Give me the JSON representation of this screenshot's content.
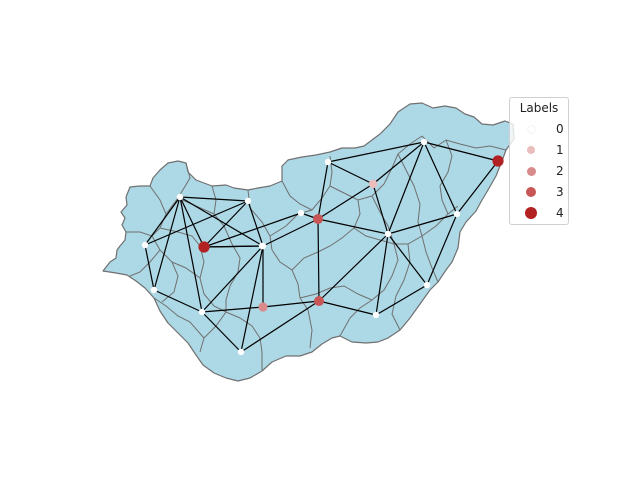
{
  "map": {
    "region_fill": "#add8e6",
    "border_color": "#707070",
    "edge_color": "#000000",
    "nodes": [
      {
        "id": "n1",
        "label": 0
      },
      {
        "id": "n2",
        "label": 0
      },
      {
        "id": "n3",
        "label": 0
      },
      {
        "id": "n4",
        "label": 0
      },
      {
        "id": "n5",
        "label": 4
      },
      {
        "id": "n6",
        "label": 0
      },
      {
        "id": "n7",
        "label": 0
      },
      {
        "id": "n8",
        "label": 0
      },
      {
        "id": "n9",
        "label": 0
      },
      {
        "id": "n10",
        "label": 2
      },
      {
        "id": "n11",
        "label": 0
      },
      {
        "id": "n12",
        "label": 0
      },
      {
        "id": "n13",
        "label": 3
      },
      {
        "id": "n14",
        "label": 3
      },
      {
        "id": "n15",
        "label": 0
      },
      {
        "id": "n16",
        "label": 1
      },
      {
        "id": "n17",
        "label": 0
      },
      {
        "id": "n18",
        "label": 0
      },
      {
        "id": "n19",
        "label": 0
      },
      {
        "id": "n20",
        "label": 4
      },
      {
        "id": "n21",
        "label": 0
      }
    ],
    "edges": [
      [
        "n1",
        "n2"
      ],
      [
        "n1",
        "n3"
      ],
      [
        "n1",
        "n4"
      ],
      [
        "n2",
        "n3"
      ],
      [
        "n2",
        "n5"
      ],
      [
        "n2",
        "n6"
      ],
      [
        "n3",
        "n5"
      ],
      [
        "n3",
        "n8"
      ],
      [
        "n3",
        "n9"
      ],
      [
        "n4",
        "n5"
      ],
      [
        "n4",
        "n6"
      ],
      [
        "n5",
        "n6"
      ],
      [
        "n5",
        "n8"
      ],
      [
        "n6",
        "n8"
      ],
      [
        "n6",
        "n10"
      ],
      [
        "n8",
        "n10"
      ],
      [
        "n8",
        "n13"
      ],
      [
        "n8",
        "n14"
      ],
      [
        "n9",
        "n13"
      ],
      [
        "n10",
        "n14"
      ],
      [
        "n12",
        "n13"
      ],
      [
        "n13",
        "n14"
      ],
      [
        "n13",
        "n15"
      ],
      [
        "n13",
        "n16"
      ],
      [
        "n13",
        "n17"
      ],
      [
        "n14",
        "n17"
      ],
      [
        "n14",
        "n18"
      ],
      [
        "n15",
        "n16"
      ],
      [
        "n15",
        "n19"
      ],
      [
        "n16",
        "n17"
      ],
      [
        "n16",
        "n19"
      ],
      [
        "n17",
        "n18"
      ],
      [
        "n17",
        "n19"
      ],
      [
        "n17",
        "n20"
      ],
      [
        "n17",
        "n21"
      ],
      [
        "n18",
        "n21"
      ],
      [
        "n19",
        "n20"
      ],
      [
        "n19",
        "n21"
      ],
      [
        "n20",
        "n21"
      ]
    ]
  },
  "legend": {
    "title": "Labels",
    "items": [
      {
        "label": "0",
        "color": "#ffffff"
      },
      {
        "label": "1",
        "color": "#ebbcbc"
      },
      {
        "label": "2",
        "color": "#d98a8a"
      },
      {
        "label": "3",
        "color": "#c85656"
      },
      {
        "label": "4",
        "color": "#b22222"
      }
    ]
  }
}
